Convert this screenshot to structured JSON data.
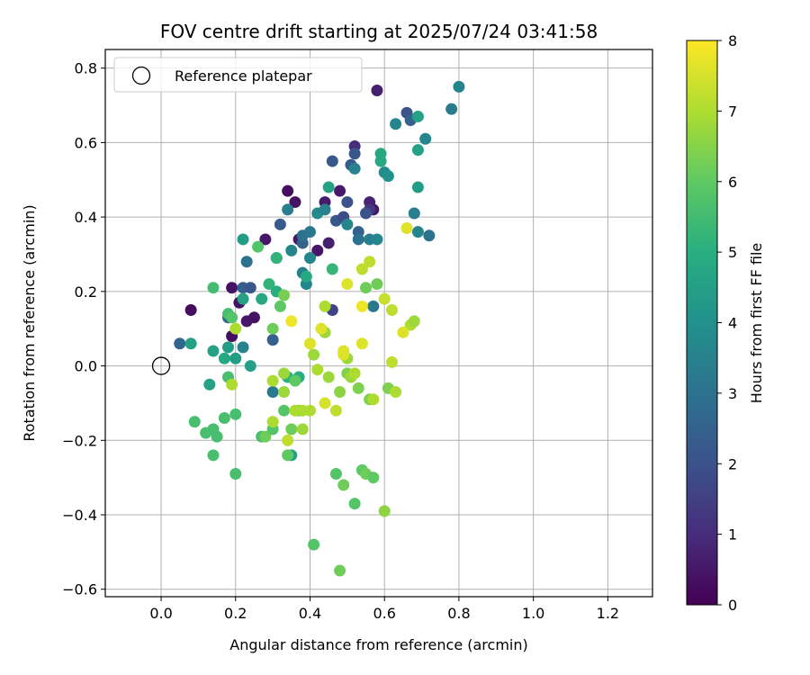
{
  "chart_data": {
    "type": "scatter",
    "title": "FOV centre drift starting at 2025/07/24 03:41:58",
    "xlabel": "Angular distance from reference (arcmin)",
    "ylabel": "Rotation from reference (arcmin)",
    "xlim": [
      -0.15,
      1.32
    ],
    "ylim": [
      -0.62,
      0.85
    ],
    "xticks": [
      0.0,
      0.2,
      0.4,
      0.6,
      0.8,
      1.0,
      1.2
    ],
    "xtick_labels": [
      "0.0",
      "0.2",
      "0.4",
      "0.6",
      "0.8",
      "1.0",
      "1.2"
    ],
    "yticks": [
      -0.6,
      -0.4,
      -0.2,
      0.0,
      0.2,
      0.4,
      0.6,
      0.8
    ],
    "ytick_labels": [
      "−0.6",
      "−0.4",
      "−0.2",
      "0.0",
      "0.2",
      "0.4",
      "0.6",
      "0.8"
    ],
    "grid": true,
    "legend": {
      "placement": "top-left",
      "entries": [
        "Reference platepar"
      ]
    },
    "reference_point": {
      "x": 0.0,
      "y": 0.0
    },
    "colorbar": {
      "label": "Hours from first FF file",
      "range": [
        0,
        8
      ],
      "ticks": [
        0,
        1,
        2,
        3,
        4,
        5,
        6,
        7,
        8
      ],
      "tick_labels": [
        "0",
        "1",
        "2",
        "3",
        "4",
        "5",
        "6",
        "7",
        "8"
      ],
      "colormap": "viridis"
    },
    "points": [
      [
        0.08,
        0.15,
        0.3
      ],
      [
        0.19,
        0.21,
        0.4
      ],
      [
        0.19,
        0.08,
        0.3
      ],
      [
        0.21,
        0.17,
        0.4
      ],
      [
        0.23,
        0.12,
        0.5
      ],
      [
        0.25,
        0.13,
        0.4
      ],
      [
        0.28,
        0.34,
        0.5
      ],
      [
        0.34,
        0.47,
        0.3
      ],
      [
        0.36,
        0.44,
        0.4
      ],
      [
        0.37,
        0.34,
        0.5
      ],
      [
        0.42,
        0.31,
        0.5
      ],
      [
        0.44,
        0.44,
        0.6
      ],
      [
        0.45,
        0.33,
        0.7
      ],
      [
        0.48,
        0.47,
        0.6
      ],
      [
        0.52,
        0.59,
        1.0
      ],
      [
        0.58,
        0.74,
        0.7
      ],
      [
        0.56,
        0.44,
        0.8
      ],
      [
        0.57,
        0.42,
        0.5
      ],
      [
        0.56,
        0.42,
        1.2
      ],
      [
        0.05,
        0.06,
        2.6
      ],
      [
        0.18,
        0.13,
        2.6
      ],
      [
        0.22,
        0.21,
        2.4
      ],
      [
        0.24,
        0.21,
        2.2
      ],
      [
        0.3,
        0.07,
        2.4
      ],
      [
        0.32,
        0.38,
        2.3
      ],
      [
        0.38,
        0.33,
        2.5
      ],
      [
        0.46,
        0.55,
        2.2
      ],
      [
        0.46,
        0.15,
        1.6
      ],
      [
        0.47,
        0.39,
        2.2
      ],
      [
        0.49,
        0.4,
        1.8
      ],
      [
        0.5,
        0.44,
        2.0
      ],
      [
        0.51,
        0.54,
        2.3
      ],
      [
        0.52,
        0.57,
        2.2
      ],
      [
        0.53,
        0.36,
        2.5
      ],
      [
        0.55,
        0.41,
        2.0
      ],
      [
        0.66,
        0.68,
        2.0
      ],
      [
        0.67,
        0.66,
        2.5
      ],
      [
        0.22,
        0.05,
        3.5
      ],
      [
        0.23,
        0.28,
        3.0
      ],
      [
        0.31,
        0.29,
        3.2
      ],
      [
        0.34,
        0.42,
        3.4
      ],
      [
        0.35,
        0.31,
        3.6
      ],
      [
        0.38,
        0.35,
        3.0
      ],
      [
        0.38,
        0.25,
        3.4
      ],
      [
        0.4,
        0.36,
        3.2
      ],
      [
        0.42,
        0.41,
        3.8
      ],
      [
        0.44,
        0.42,
        3.5
      ],
      [
        0.5,
        0.38,
        3.6
      ],
      [
        0.52,
        0.53,
        3.5
      ],
      [
        0.53,
        0.34,
        3.0
      ],
      [
        0.56,
        0.34,
        3.4
      ],
      [
        0.57,
        0.16,
        3.2
      ],
      [
        0.58,
        0.34,
        3.6
      ],
      [
        0.6,
        0.52,
        3.8
      ],
      [
        0.61,
        0.51,
        4.0
      ],
      [
        0.63,
        0.65,
        3.6
      ],
      [
        0.68,
        0.41,
        3.4
      ],
      [
        0.69,
        0.36,
        3.6
      ],
      [
        0.71,
        0.61,
        3.6
      ],
      [
        0.72,
        0.35,
        3.0
      ],
      [
        0.78,
        0.69,
        3.3
      ],
      [
        0.8,
        0.75,
        3.6
      ],
      [
        0.3,
        -0.07,
        3.2
      ],
      [
        0.39,
        0.22,
        3.6
      ],
      [
        0.4,
        0.29,
        3.6
      ],
      [
        0.08,
        0.06,
        4.6
      ],
      [
        0.14,
        0.04,
        4.6
      ],
      [
        0.17,
        0.02,
        4.8
      ],
      [
        0.18,
        0.05,
        4.4
      ],
      [
        0.2,
        0.02,
        4.4
      ],
      [
        0.22,
        0.34,
        4.4
      ],
      [
        0.22,
        0.18,
        4.6
      ],
      [
        0.24,
        0.0,
        4.5
      ],
      [
        0.27,
        0.18,
        4.8
      ],
      [
        0.29,
        0.22,
        5.2
      ],
      [
        0.31,
        0.29,
        5.2
      ],
      [
        0.31,
        0.2,
        5.0
      ],
      [
        0.34,
        -0.03,
        5.1
      ],
      [
        0.35,
        -0.24,
        4.6
      ],
      [
        0.37,
        -0.03,
        5.0
      ],
      [
        0.39,
        0.24,
        4.8
      ],
      [
        0.45,
        0.48,
        4.6
      ],
      [
        0.59,
        0.55,
        4.8
      ],
      [
        0.59,
        0.57,
        4.8
      ],
      [
        0.69,
        0.48,
        4.4
      ],
      [
        0.69,
        0.58,
        4.6
      ],
      [
        0.69,
        0.67,
        4.6
      ],
      [
        0.46,
        0.26,
        5.3
      ],
      [
        0.13,
        -0.05,
        4.6
      ],
      [
        0.09,
        -0.15,
        5.6
      ],
      [
        0.12,
        -0.18,
        5.6
      ],
      [
        0.14,
        -0.24,
        5.6
      ],
      [
        0.14,
        -0.17,
        5.6
      ],
      [
        0.15,
        -0.19,
        5.6
      ],
      [
        0.17,
        -0.14,
        5.6
      ],
      [
        0.18,
        -0.03,
        5.6
      ],
      [
        0.2,
        -0.13,
        5.6
      ],
      [
        0.2,
        -0.29,
        5.6
      ],
      [
        0.14,
        0.21,
        5.5
      ],
      [
        0.18,
        0.14,
        5.6
      ],
      [
        0.19,
        0.13,
        5.8
      ],
      [
        0.26,
        0.32,
        5.8
      ],
      [
        0.27,
        -0.19,
        5.6
      ],
      [
        0.28,
        -0.19,
        6.2
      ],
      [
        0.3,
        -0.17,
        5.8
      ],
      [
        0.33,
        -0.12,
        5.8
      ],
      [
        0.34,
        -0.24,
        6.0
      ],
      [
        0.35,
        -0.17,
        6.2
      ],
      [
        0.36,
        -0.04,
        6.0
      ],
      [
        0.37,
        -0.12,
        6.2
      ],
      [
        0.41,
        -0.48,
        5.8
      ],
      [
        0.47,
        -0.29,
        5.8
      ],
      [
        0.48,
        -0.55,
        6.2
      ],
      [
        0.49,
        -0.32,
        6.2
      ],
      [
        0.5,
        -0.02,
        6.4
      ],
      [
        0.52,
        -0.37,
        5.8
      ],
      [
        0.53,
        -0.06,
        6.4
      ],
      [
        0.54,
        -0.28,
        6.0
      ],
      [
        0.55,
        -0.29,
        6.2
      ],
      [
        0.56,
        -0.09,
        6.4
      ],
      [
        0.57,
        -0.3,
        6.0
      ],
      [
        0.58,
        0.22,
        6.2
      ],
      [
        0.6,
        -0.39,
        6.6
      ],
      [
        0.61,
        -0.06,
        6.4
      ],
      [
        0.55,
        0.21,
        6.2
      ],
      [
        0.32,
        0.16,
        6.0
      ],
      [
        0.33,
        0.19,
        6.3
      ],
      [
        0.3,
        0.1,
        6.2
      ],
      [
        0.19,
        -0.05,
        7.0
      ],
      [
        0.2,
        0.1,
        7.0
      ],
      [
        0.3,
        -0.15,
        7.0
      ],
      [
        0.3,
        -0.04,
        7.0
      ],
      [
        0.33,
        -0.02,
        6.8
      ],
      [
        0.33,
        -0.07,
        6.8
      ],
      [
        0.34,
        -0.2,
        7.2
      ],
      [
        0.36,
        -0.12,
        7.0
      ],
      [
        0.38,
        -0.12,
        7.0
      ],
      [
        0.38,
        -0.17,
        6.8
      ],
      [
        0.4,
        -0.12,
        7.0
      ],
      [
        0.41,
        0.03,
        6.8
      ],
      [
        0.42,
        -0.01,
        7.0
      ],
      [
        0.44,
        0.09,
        6.8
      ],
      [
        0.45,
        -0.03,
        6.8
      ],
      [
        0.47,
        -0.12,
        7.2
      ],
      [
        0.48,
        -0.07,
        6.6
      ],
      [
        0.5,
        0.02,
        6.8
      ],
      [
        0.51,
        -0.03,
        6.8
      ],
      [
        0.52,
        -0.02,
        7.0
      ],
      [
        0.54,
        0.26,
        7.2
      ],
      [
        0.56,
        0.28,
        7.2
      ],
      [
        0.57,
        -0.09,
        7.0
      ],
      [
        0.6,
        0.18,
        7.3
      ],
      [
        0.62,
        0.15,
        7.2
      ],
      [
        0.62,
        0.01,
        7.2
      ],
      [
        0.63,
        -0.07,
        7.0
      ],
      [
        0.67,
        0.11,
        7.0
      ],
      [
        0.68,
        0.12,
        6.8
      ],
      [
        0.44,
        0.16,
        7.0
      ],
      [
        0.35,
        0.12,
        7.8
      ],
      [
        0.4,
        0.06,
        7.6
      ],
      [
        0.43,
        0.1,
        7.6
      ],
      [
        0.44,
        -0.1,
        7.5
      ],
      [
        0.49,
        0.03,
        7.6
      ],
      [
        0.5,
        0.22,
        7.6
      ],
      [
        0.54,
        0.06,
        7.6
      ],
      [
        0.54,
        0.16,
        7.8
      ],
      [
        0.65,
        0.09,
        7.6
      ],
      [
        0.66,
        0.37,
        7.6
      ],
      [
        0.49,
        0.04,
        7.6
      ]
    ]
  }
}
